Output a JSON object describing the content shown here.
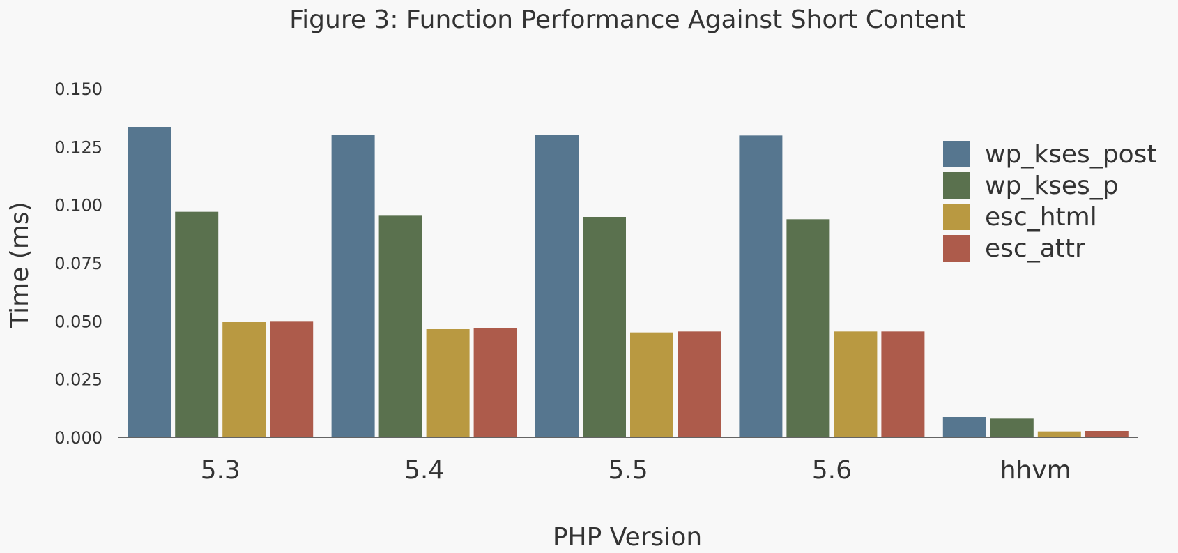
{
  "chart_data": {
    "type": "bar",
    "title": "Figure 3: Function Performance Against Short Content",
    "xlabel": "PHP Version",
    "ylabel": "Time (ms)",
    "categories": [
      "5.3",
      "5.4",
      "5.5",
      "5.6",
      "hhvm"
    ],
    "ylim": [
      0,
      0.15
    ],
    "yticks": [
      "0.000",
      "0.025",
      "0.050",
      "0.075",
      "0.100",
      "0.125",
      "0.150"
    ],
    "ytick_values": [
      0,
      0.025,
      0.05,
      0.075,
      0.1,
      0.125,
      0.15
    ],
    "grid": false,
    "legend_position": "right",
    "series": [
      {
        "name": "wp_kses_post",
        "color": "#56768f",
        "values": [
          0.1335,
          0.13,
          0.13,
          0.1298,
          0.0087
        ]
      },
      {
        "name": "wp_kses_p",
        "color": "#5a714e",
        "values": [
          0.097,
          0.0953,
          0.0948,
          0.0938,
          0.008
        ]
      },
      {
        "name": "esc_html",
        "color": "#b99941",
        "values": [
          0.0495,
          0.0465,
          0.0451,
          0.0455,
          0.0025
        ]
      },
      {
        "name": "esc_attr",
        "color": "#ad5b4b",
        "values": [
          0.0497,
          0.0468,
          0.0455,
          0.0455,
          0.0027
        ]
      }
    ]
  }
}
